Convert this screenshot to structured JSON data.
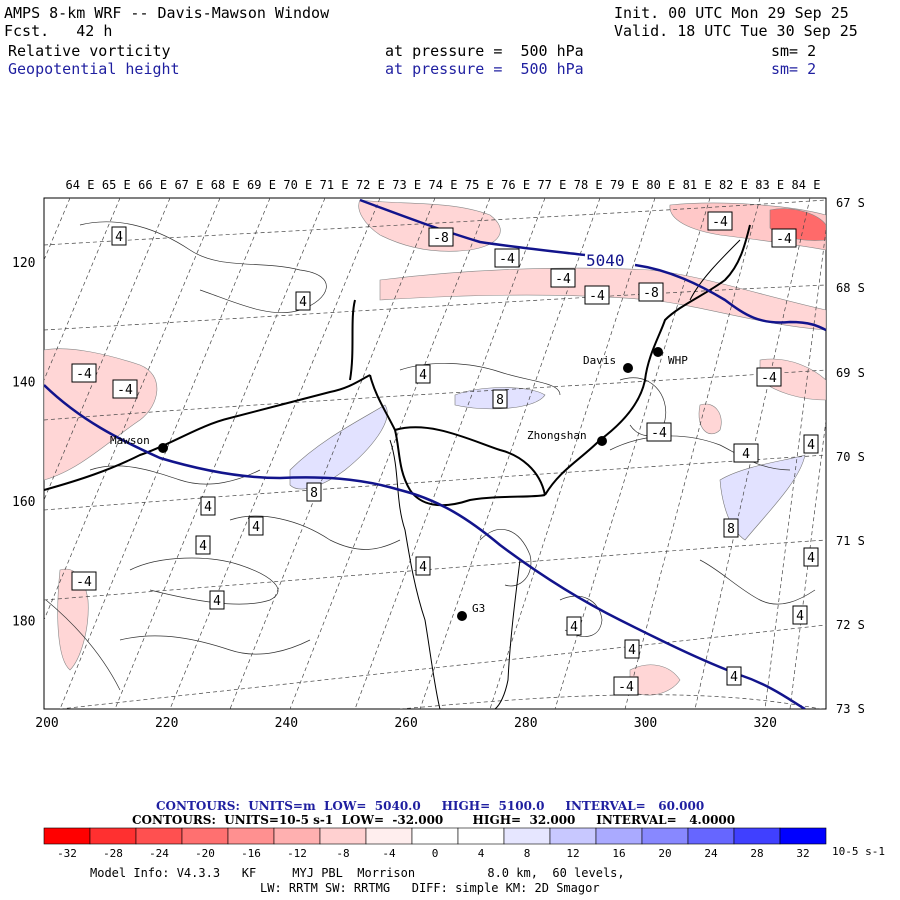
{
  "header": {
    "model_title": "AMPS 8-km WRF -- Davis-Mawson Window",
    "forecast": "Fcst.   42 h",
    "init": "Init. 00 UTC Mon 29 Sep 25",
    "valid": "Valid. 18 UTC Tue 30 Sep 25",
    "field1": {
      "name": "Relative vorticity",
      "level": "at pressure =  500 hPa",
      "smoothing": "sm= 2"
    },
    "field2": {
      "name": "Geopotential height",
      "level": "at pressure =  500 hPa",
      "smoothing": "sm= 2"
    }
  },
  "map": {
    "longitude_labels": [
      "64 E",
      "65 E",
      "66 E",
      "67 E",
      "68 E",
      "69 E",
      "70 E",
      "71 E",
      "72 E",
      "73 E",
      "74 E",
      "75 E",
      "76 E",
      "77 E",
      "78 E",
      "79 E",
      "80 E",
      "81 E",
      "82 E",
      "83 E",
      "84 E"
    ],
    "latitude_labels": [
      "67 S",
      "68 S",
      "69 S",
      "70 S",
      "71 S",
      "72 S",
      "73 S"
    ],
    "grid_y_labels": [
      "120",
      "140",
      "160",
      "180"
    ],
    "grid_x_labels": [
      "200",
      "220",
      "240",
      "260",
      "280",
      "300",
      "320"
    ],
    "height_contour_label": "5040",
    "stations": [
      {
        "name": "Mawson"
      },
      {
        "name": "Davis"
      },
      {
        "name": "WHP"
      },
      {
        "name": "Zhongshan"
      },
      {
        "name": "G3"
      }
    ],
    "vorticity_labels": [
      "4",
      "-8",
      "-4",
      "-4",
      "-4",
      "-8",
      "-4",
      "-4",
      "4",
      "4",
      "8",
      "-4",
      "-4",
      "4",
      "-4",
      "4",
      "8",
      "4",
      "4",
      "4",
      "-4",
      "8",
      "4",
      "4",
      "-4",
      "4",
      "4",
      "-4",
      "4",
      "4",
      "4"
    ]
  },
  "footer": {
    "contours1": "CONTOURS:  UNITS=m  LOW=  5040.0     HIGH=  5100.0     INTERVAL=   60.000",
    "contours2": "CONTOURS:  UNITS=10-5 s-1  LOW=  -32.000       HIGH=  32.000     INTERVAL=   4.0000",
    "colorbar_ticks": [
      "-32",
      "-28",
      "-24",
      "-20",
      "-16",
      "-12",
      "-8",
      "-4",
      "0",
      "4",
      "8",
      "12",
      "16",
      "20",
      "24",
      "28",
      "32"
    ],
    "colorbar_unit": "10-5 s-1",
    "colorbar_colors": [
      "#ff0000",
      "#ff3030",
      "#ff5050",
      "#ff7070",
      "#ff9090",
      "#ffb0b0",
      "#ffd0d0",
      "#ffeeee",
      "#ffffff",
      "#ffffff",
      "#e6e6ff",
      "#c8c8ff",
      "#aaaaff",
      "#8888ff",
      "#6666ff",
      "#4040ff",
      "#0000ff"
    ],
    "model_info": "Model Info: V4.3.3   KF     MYJ PBL  Morrison          8.0 km,  60 levels,",
    "physics": "LW: RRTM SW: RRTMG   DIFF: simple KM: 2D Smagor"
  }
}
